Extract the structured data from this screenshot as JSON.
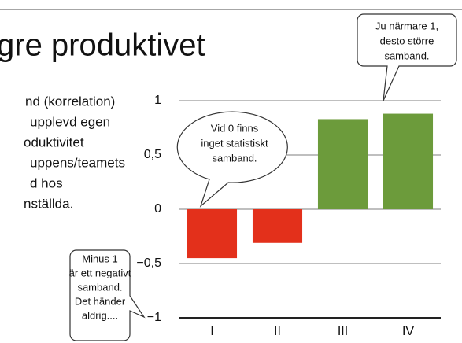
{
  "title": "gre produktivet",
  "body_lines": [
    "nd (korrelation)",
    "upplevd egen",
    "oduktivitet",
    "uppens/teamets",
    "d hos",
    "nställda."
  ],
  "chart_data": {
    "type": "bar",
    "categories": [
      "I",
      "II",
      "III",
      "IV"
    ],
    "values": [
      -0.45,
      -0.31,
      0.83,
      0.88
    ],
    "colors": [
      "#e3301b",
      "#e3301b",
      "#6c9b3b",
      "#6c9b3b"
    ],
    "ylim": [
      -1,
      1
    ],
    "yticks": [
      {
        "value": -1,
        "label": "−1"
      },
      {
        "value": -0.5,
        "label": "−0,5"
      },
      0,
      {
        "value": 0.5,
        "label": "0,5"
      },
      1
    ],
    "grid": true,
    "annotations": [
      [
        "Ju närmare 1,",
        "desto större",
        "samband."
      ],
      [
        "Vid 0 finns",
        "inget statistiskt",
        "samband."
      ],
      [
        "Minus 1",
        "är ett negativt",
        "samband.",
        "Det händer",
        "aldrig...."
      ]
    ]
  }
}
